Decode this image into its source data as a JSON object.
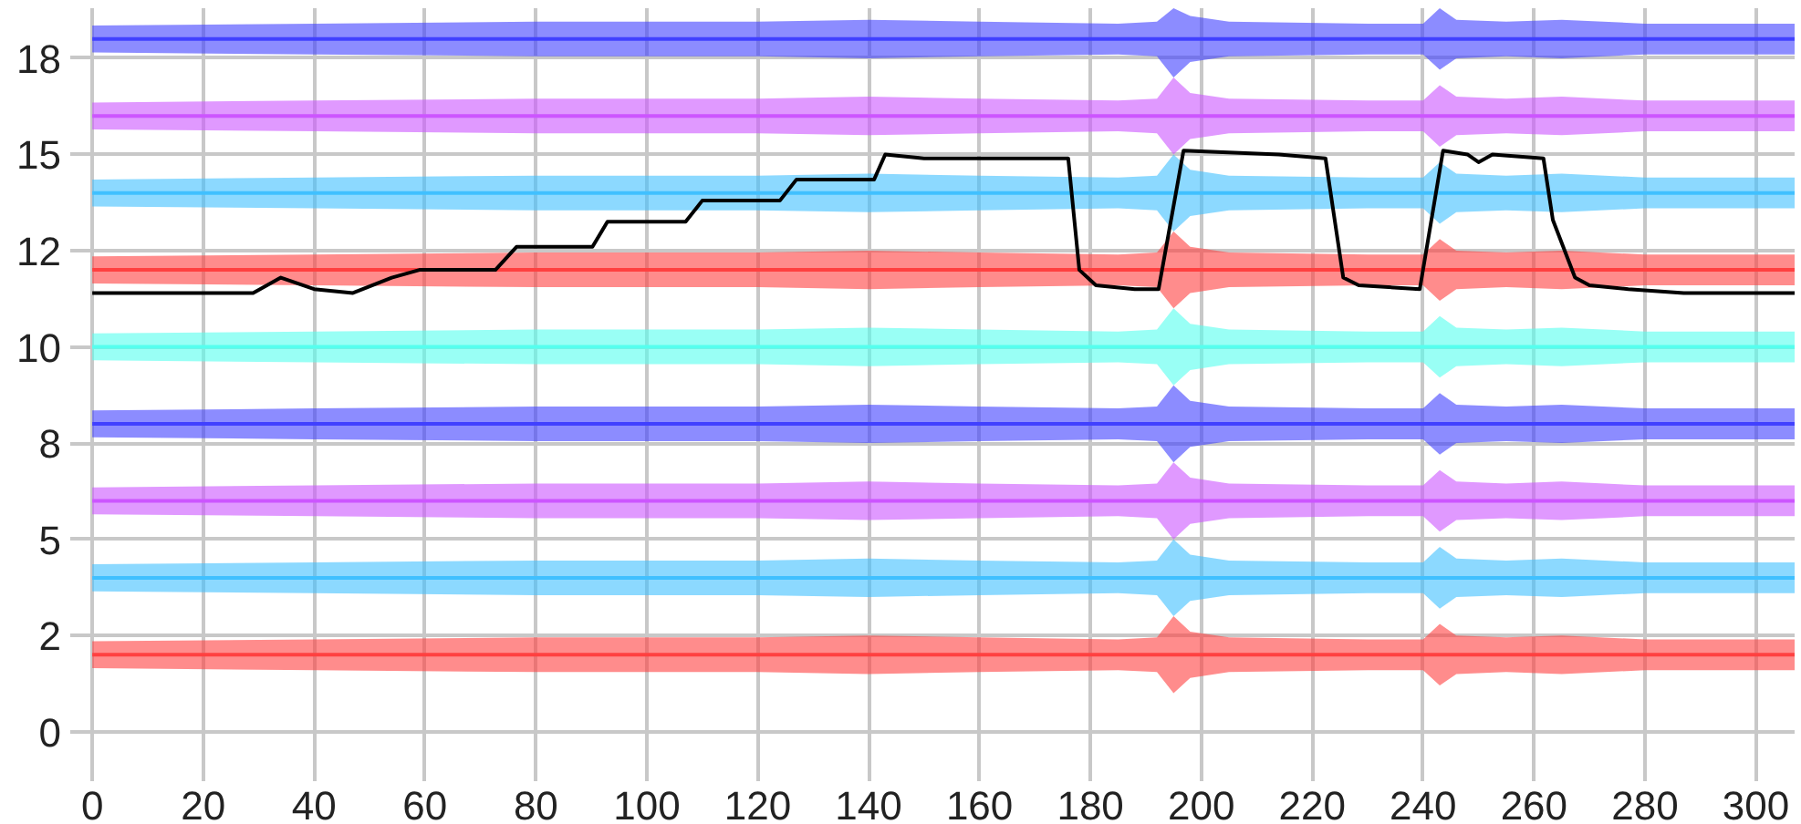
{
  "chart_data": {
    "type": "line",
    "x": [
      0,
      40,
      80,
      120,
      140,
      160,
      185,
      192,
      195,
      198,
      205,
      230,
      240,
      243,
      246,
      255,
      265,
      280,
      307
    ],
    "xlim": [
      -2,
      307
    ],
    "xticks": [
      0,
      20,
      40,
      60,
      80,
      100,
      120,
      140,
      160,
      180,
      200,
      220,
      240,
      260,
      280,
      300
    ],
    "ylim": [
      -1,
      18.8
    ],
    "yticks": [
      0,
      {
        "value": 2.5,
        "label": "2"
      },
      5,
      {
        "value": 7.5,
        "label": "8"
      },
      10,
      {
        "value": 12.5,
        "label": "12"
      },
      15,
      {
        "value": 17.5,
        "label": "18"
      }
    ],
    "grid": true,
    "marker": "none",
    "line_style": "solid",
    "series": [
      {
        "color": "#ff4040",
        "values": [
          2,
          2,
          2,
          2,
          2,
          2,
          2,
          2,
          2,
          2,
          2,
          2,
          2,
          2,
          2,
          2,
          2,
          2,
          2
        ],
        "lower": [
          1.65,
          1.6,
          1.55,
          1.55,
          1.5,
          1.55,
          1.6,
          1.55,
          1.0,
          1.4,
          1.55,
          1.6,
          1.6,
          1.2,
          1.5,
          1.55,
          1.5,
          1.6,
          1.6
        ],
        "upper": [
          2.35,
          2.4,
          2.45,
          2.45,
          2.5,
          2.45,
          2.4,
          2.45,
          3.0,
          2.6,
          2.45,
          2.4,
          2.4,
          2.8,
          2.5,
          2.45,
          2.5,
          2.4,
          2.4
        ]
      },
      {
        "color": "#40c0ff",
        "values": [
          4,
          4,
          4,
          4,
          4,
          4,
          4,
          4,
          4,
          4,
          4,
          4,
          4,
          4,
          4,
          4,
          4,
          4,
          4
        ],
        "lower": [
          3.65,
          3.6,
          3.55,
          3.55,
          3.5,
          3.55,
          3.6,
          3.55,
          3.0,
          3.4,
          3.55,
          3.6,
          3.6,
          3.2,
          3.5,
          3.55,
          3.5,
          3.6,
          3.6
        ],
        "upper": [
          4.35,
          4.4,
          4.45,
          4.45,
          4.5,
          4.45,
          4.4,
          4.45,
          5.0,
          4.6,
          4.45,
          4.4,
          4.4,
          4.8,
          4.5,
          4.45,
          4.5,
          4.4,
          4.4
        ]
      },
      {
        "color": "#cc55ff",
        "values": [
          6,
          6,
          6,
          6,
          6,
          6,
          6,
          6,
          6,
          6,
          6,
          6,
          6,
          6,
          6,
          6,
          6,
          6,
          6
        ],
        "lower": [
          5.65,
          5.6,
          5.55,
          5.55,
          5.5,
          5.55,
          5.6,
          5.55,
          5.0,
          5.4,
          5.55,
          5.6,
          5.6,
          5.2,
          5.5,
          5.55,
          5.5,
          5.6,
          5.6
        ],
        "upper": [
          6.35,
          6.4,
          6.45,
          6.45,
          6.5,
          6.45,
          6.4,
          6.45,
          7.0,
          6.6,
          6.45,
          6.4,
          6.4,
          6.8,
          6.5,
          6.45,
          6.5,
          6.4,
          6.4
        ]
      },
      {
        "color": "#4040ff",
        "values": [
          8,
          8,
          8,
          8,
          8,
          8,
          8,
          8,
          8,
          8,
          8,
          8,
          8,
          8,
          8,
          8,
          8,
          8,
          8
        ],
        "lower": [
          7.65,
          7.6,
          7.55,
          7.55,
          7.5,
          7.55,
          7.6,
          7.55,
          7.0,
          7.4,
          7.55,
          7.6,
          7.6,
          7.2,
          7.5,
          7.55,
          7.5,
          7.6,
          7.6
        ],
        "upper": [
          8.35,
          8.4,
          8.45,
          8.45,
          8.5,
          8.45,
          8.4,
          8.45,
          9.0,
          8.6,
          8.45,
          8.4,
          8.4,
          8.8,
          8.5,
          8.45,
          8.5,
          8.4,
          8.4
        ]
      },
      {
        "color": "#55ffee",
        "values": [
          10,
          10,
          10,
          10,
          10,
          10,
          10,
          10,
          10,
          10,
          10,
          10,
          10,
          10,
          10,
          10,
          10,
          10,
          10
        ],
        "lower": [
          9.65,
          9.6,
          9.55,
          9.55,
          9.5,
          9.55,
          9.6,
          9.55,
          9.0,
          9.4,
          9.55,
          9.6,
          9.6,
          9.2,
          9.5,
          9.55,
          9.5,
          9.6,
          9.6
        ],
        "upper": [
          10.35,
          10.4,
          10.45,
          10.45,
          10.5,
          10.45,
          10.4,
          10.45,
          11.0,
          10.6,
          10.45,
          10.4,
          10.4,
          10.8,
          10.5,
          10.45,
          10.5,
          10.4,
          10.4
        ]
      },
      {
        "color": "#ff4040",
        "values": [
          12,
          12,
          12,
          12,
          12,
          12,
          12,
          12,
          12,
          12,
          12,
          12,
          12,
          12,
          12,
          12,
          12,
          12,
          12
        ],
        "lower": [
          11.65,
          11.6,
          11.55,
          11.55,
          11.5,
          11.55,
          11.6,
          11.55,
          11.0,
          11.4,
          11.55,
          11.6,
          11.6,
          11.2,
          11.5,
          11.55,
          11.5,
          11.6,
          11.6
        ],
        "upper": [
          12.35,
          12.4,
          12.45,
          12.45,
          12.5,
          12.45,
          12.4,
          12.45,
          13.0,
          12.6,
          12.45,
          12.4,
          12.4,
          12.8,
          12.5,
          12.45,
          12.5,
          12.4,
          12.4
        ]
      },
      {
        "color": "#40c0ff",
        "values": [
          14,
          14,
          14,
          14,
          14,
          14,
          14,
          14,
          14,
          14,
          14,
          14,
          14,
          14,
          14,
          14,
          14,
          14,
          14
        ],
        "lower": [
          13.65,
          13.6,
          13.55,
          13.55,
          13.5,
          13.55,
          13.6,
          13.55,
          13.0,
          13.4,
          13.55,
          13.6,
          13.6,
          13.2,
          13.5,
          13.55,
          13.5,
          13.6,
          13.6
        ],
        "upper": [
          14.35,
          14.4,
          14.45,
          14.45,
          14.5,
          14.45,
          14.4,
          14.45,
          15.0,
          14.6,
          14.45,
          14.4,
          14.4,
          14.8,
          14.5,
          14.45,
          14.5,
          14.4,
          14.4
        ]
      },
      {
        "color": "#cc55ff",
        "values": [
          16,
          16,
          16,
          16,
          16,
          16,
          16,
          16,
          16,
          16,
          16,
          16,
          16,
          16,
          16,
          16,
          16,
          16,
          16
        ],
        "lower": [
          15.65,
          15.6,
          15.55,
          15.55,
          15.5,
          15.55,
          15.6,
          15.55,
          15.0,
          15.4,
          15.55,
          15.6,
          15.6,
          15.2,
          15.5,
          15.55,
          15.5,
          15.6,
          15.6
        ],
        "upper": [
          16.35,
          16.4,
          16.45,
          16.45,
          16.5,
          16.45,
          16.4,
          16.45,
          17.0,
          16.6,
          16.45,
          16.4,
          16.4,
          16.8,
          16.5,
          16.45,
          16.5,
          16.4,
          16.4
        ]
      },
      {
        "color": "#4040ff",
        "values": [
          18,
          18,
          18,
          18,
          18,
          18,
          18,
          18,
          18,
          18,
          18,
          18,
          18,
          18,
          18,
          18,
          18,
          18,
          18
        ],
        "lower": [
          17.65,
          17.6,
          17.55,
          17.55,
          17.5,
          17.55,
          17.6,
          17.55,
          17.0,
          17.4,
          17.55,
          17.6,
          17.6,
          17.2,
          17.5,
          17.55,
          17.5,
          17.6,
          17.6
        ],
        "upper": [
          18.35,
          18.4,
          18.45,
          18.45,
          18.5,
          18.45,
          18.4,
          18.45,
          18.8,
          18.6,
          18.45,
          18.4,
          18.4,
          18.8,
          18.5,
          18.45,
          18.5,
          18.4,
          18.4
        ]
      },
      {
        "color": "#000000",
        "x": [
          0,
          29,
          34,
          40,
          47,
          54,
          59,
          72.7,
          76.5,
          90.2,
          92.9,
          107,
          110,
          124,
          127,
          141,
          143,
          150,
          176,
          178,
          181,
          188,
          192.3,
          196.8,
          214,
          222.4,
          225.6,
          228.4,
          239.4,
          243.6,
          248,
          250,
          252.5,
          261.7,
          263.4,
          267.4,
          270,
          277,
          287,
          307
        ],
        "values": [
          11.4,
          11.4,
          11.8,
          11.5,
          11.4,
          11.8,
          12.0,
          12.0,
          12.6,
          12.6,
          13.25,
          13.25,
          13.8,
          13.8,
          14.35,
          14.35,
          15.0,
          14.9,
          14.9,
          12.0,
          11.6,
          11.5,
          11.5,
          15.1,
          15.0,
          14.9,
          11.8,
          11.6,
          11.5,
          15.1,
          15.0,
          14.8,
          15.0,
          14.9,
          13.3,
          11.8,
          11.6,
          11.5,
          11.4,
          11.4
        ]
      }
    ]
  }
}
